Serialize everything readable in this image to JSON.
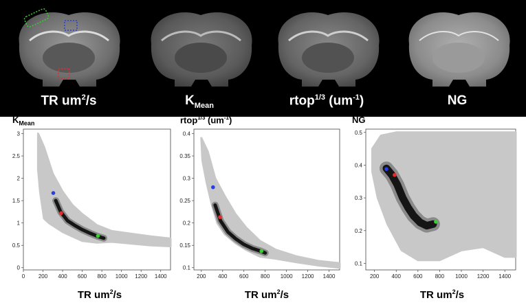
{
  "brain_images": [
    {
      "label_main": "TR um",
      "label_sup": "2",
      "label_tail": "/s"
    },
    {
      "label_main": "K",
      "label_sub": "Mean"
    },
    {
      "label_main": "rtop",
      "label_sup": "1/3",
      "label_tail": " (um",
      "label_sup2": "-1",
      "label_tail2": ")"
    },
    {
      "label_main": "NG"
    }
  ],
  "roi_colors": {
    "green": "#39d12f",
    "blue": "#2a3fe0",
    "red": "#e52b2b"
  },
  "xlabel": {
    "main": "TR um",
    "sup": "2",
    "tail": "/s"
  },
  "chart_data": [
    {
      "type": "scatter",
      "title_main": "K",
      "title_sub": "Mean",
      "xlabel": "TR um2/s",
      "xlim": [
        0,
        1500
      ],
      "ylim": [
        -0.05,
        3.1
      ],
      "xticks": [
        0,
        200,
        400,
        600,
        800,
        1000,
        1200,
        1400
      ],
      "yticks": [
        0,
        0.5,
        1,
        1.5,
        2,
        2.5,
        3
      ],
      "ytick_labels": [
        "0",
        "0.5",
        "1",
        "1.5",
        "2",
        "2.5",
        "3"
      ],
      "cloud_upper": [
        [
          150,
          3.0
        ],
        [
          210,
          2.7
        ],
        [
          300,
          2.1
        ],
        [
          400,
          1.7
        ],
        [
          500,
          1.4
        ],
        [
          600,
          1.2
        ],
        [
          750,
          0.95
        ],
        [
          900,
          0.82
        ],
        [
          1100,
          0.76
        ],
        [
          1300,
          0.7
        ],
        [
          1500,
          0.65
        ]
      ],
      "cloud_lower": [
        [
          1500,
          0.48
        ],
        [
          1300,
          0.5
        ],
        [
          1100,
          0.54
        ],
        [
          900,
          0.58
        ],
        [
          750,
          0.56
        ],
        [
          600,
          0.6
        ],
        [
          500,
          0.7
        ],
        [
          400,
          0.8
        ],
        [
          330,
          0.9
        ],
        [
          260,
          1.0
        ],
        [
          210,
          1.1
        ],
        [
          170,
          1.7
        ],
        [
          150,
          2.2
        ]
      ],
      "density_ridge": [
        [
          330,
          1.5
        ],
        [
          380,
          1.25
        ],
        [
          450,
          1.05
        ],
        [
          520,
          0.95
        ],
        [
          600,
          0.85
        ],
        [
          680,
          0.77
        ],
        [
          760,
          0.7
        ],
        [
          820,
          0.66
        ]
      ],
      "highlights": [
        {
          "roi": "blue",
          "x": 305,
          "y": 1.67
        },
        {
          "roi": "red",
          "x": 385,
          "y": 1.22
        },
        {
          "roi": "green",
          "x": 760,
          "y": 0.71
        }
      ]
    },
    {
      "type": "scatter",
      "title_main": "rtop",
      "title_sup": "1/3",
      "title_tail": " (um",
      "title_sup2": "-1",
      "title_tail2": ")",
      "xlabel": "TR um2/s",
      "xlim": [
        130,
        1500
      ],
      "ylim": [
        0.095,
        0.41
      ],
      "xticks": [
        200,
        400,
        600,
        800,
        1000,
        1200,
        1400
      ],
      "yticks": [
        0.1,
        0.15,
        0.2,
        0.25,
        0.3,
        0.35,
        0.4
      ],
      "ytick_labels": [
        "0.1",
        "0.15",
        "0.2",
        "0.25",
        "0.3",
        "0.35",
        "0.4"
      ],
      "cloud_upper": [
        [
          200,
          0.39
        ],
        [
          260,
          0.36
        ],
        [
          330,
          0.3
        ],
        [
          420,
          0.26
        ],
        [
          520,
          0.22
        ],
        [
          620,
          0.19
        ],
        [
          750,
          0.16
        ],
        [
          900,
          0.14
        ],
        [
          1100,
          0.125
        ],
        [
          1300,
          0.115
        ],
        [
          1500,
          0.11
        ]
      ],
      "cloud_lower": [
        [
          1500,
          0.1
        ],
        [
          1300,
          0.105
        ],
        [
          1100,
          0.112
        ],
        [
          900,
          0.12
        ],
        [
          750,
          0.125
        ],
        [
          620,
          0.14
        ],
        [
          520,
          0.155
        ],
        [
          420,
          0.175
        ],
        [
          350,
          0.2
        ],
        [
          300,
          0.24
        ],
        [
          250,
          0.29
        ],
        [
          210,
          0.34
        ]
      ],
      "density_ridge": [
        [
          330,
          0.24
        ],
        [
          380,
          0.205
        ],
        [
          450,
          0.18
        ],
        [
          520,
          0.165
        ],
        [
          600,
          0.152
        ],
        [
          680,
          0.143
        ],
        [
          760,
          0.137
        ],
        [
          800,
          0.133
        ]
      ],
      "highlights": [
        {
          "roi": "blue",
          "x": 310,
          "y": 0.28
        },
        {
          "roi": "red",
          "x": 375,
          "y": 0.213
        },
        {
          "roi": "green",
          "x": 765,
          "y": 0.137
        }
      ]
    },
    {
      "type": "scatter",
      "title_main": "NG",
      "xlabel": "TR um2/s",
      "xlim": [
        120,
        1500
      ],
      "ylim": [
        0.08,
        0.51
      ],
      "xticks": [
        200,
        400,
        600,
        800,
        1000,
        1200,
        1400
      ],
      "yticks": [
        0.1,
        0.2,
        0.3,
        0.4,
        0.5
      ],
      "ytick_labels": [
        "0.1",
        "0.2",
        "0.3",
        "0.4",
        "0.5"
      ],
      "cloud_upper": [
        [
          180,
          0.45
        ],
        [
          260,
          0.49
        ],
        [
          400,
          0.5
        ],
        [
          600,
          0.5
        ],
        [
          800,
          0.5
        ],
        [
          1000,
          0.5
        ],
        [
          1200,
          0.5
        ],
        [
          1400,
          0.5
        ],
        [
          1500,
          0.5
        ]
      ],
      "cloud_lower": [
        [
          1500,
          0.12
        ],
        [
          1400,
          0.12
        ],
        [
          1200,
          0.15
        ],
        [
          1000,
          0.14
        ],
        [
          800,
          0.11
        ],
        [
          600,
          0.11
        ],
        [
          450,
          0.14
        ],
        [
          320,
          0.22
        ],
        [
          230,
          0.3
        ],
        [
          180,
          0.38
        ]
      ],
      "density_ridge": [
        [
          310,
          0.39
        ],
        [
          360,
          0.37
        ],
        [
          410,
          0.34
        ],
        [
          460,
          0.3
        ],
        [
          510,
          0.27
        ],
        [
          560,
          0.245
        ],
        [
          620,
          0.225
        ],
        [
          680,
          0.215
        ],
        [
          740,
          0.22
        ]
      ],
      "highlights": [
        {
          "roi": "blue",
          "x": 310,
          "y": 0.388
        },
        {
          "roi": "red",
          "x": 385,
          "y": 0.37
        },
        {
          "roi": "green",
          "x": 765,
          "y": 0.227
        }
      ]
    }
  ]
}
